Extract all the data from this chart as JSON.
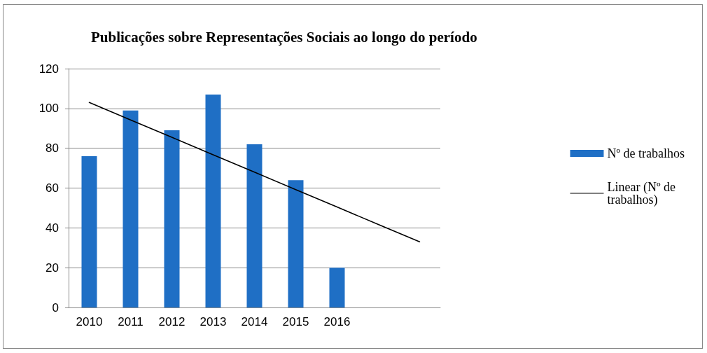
{
  "chart_data": {
    "type": "bar",
    "title": "Publicações sobre Representações Sociais ao longo do período",
    "categories": [
      "2010",
      "2011",
      "2012",
      "2013",
      "2014",
      "2015",
      "2016",
      null,
      null
    ],
    "series": [
      {
        "name": "Nº de trabalhos",
        "color": "#1f6fc5",
        "values": [
          76,
          99,
          89,
          107,
          82,
          64,
          20,
          null,
          null
        ]
      },
      {
        "name": "Linear (Nº de trabalhos)",
        "type": "line",
        "color": "#000000",
        "values": [
          103,
          94.2,
          85.5,
          76.7,
          68,
          59.2,
          50.5,
          41.7,
          33
        ]
      }
    ],
    "ylim": [
      0,
      120
    ],
    "yticks": [
      0,
      20,
      40,
      60,
      80,
      100,
      120
    ],
    "grid": "y",
    "legend": "right",
    "marker": "none",
    "line_style": "solid"
  }
}
